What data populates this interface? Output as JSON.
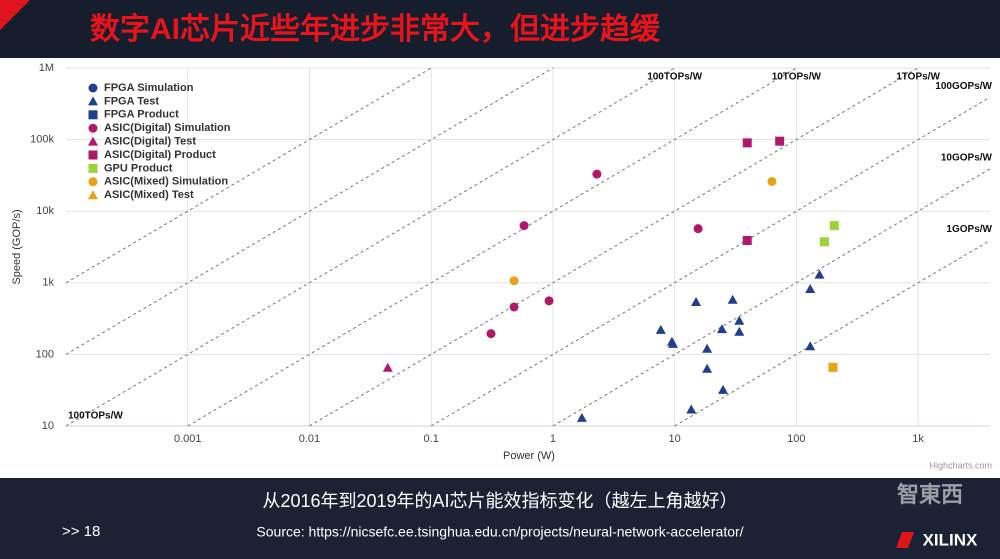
{
  "header": {
    "title": "数字AI芯片近些年进步非常大，但进步趋缓"
  },
  "chart_data": {
    "type": "scatter",
    "log_x": true,
    "log_y": true,
    "grid": true,
    "legend": "top-left",
    "xlabel": "Power (W)",
    "ylabel": "Speed (GOP/s)",
    "credits": "Highcharts.com",
    "xlim": [
      0.0001,
      3900
    ],
    "ylim": [
      10,
      1000000
    ],
    "xticks": [
      0.001,
      0.01,
      0.1,
      1,
      10,
      100,
      {
        "value": 1000,
        "label": "1k"
      }
    ],
    "yticks": [
      10,
      100,
      {
        "value": 1000,
        "label": "1k"
      },
      {
        "value": 10000,
        "label": "10k"
      },
      {
        "value": 100000,
        "label": "100k"
      },
      {
        "value": 1000000,
        "label": "1M"
      }
    ],
    "efficiency_lines": [
      {
        "value": 10000000,
        "label": null
      },
      {
        "value": 1000000,
        "label": null
      },
      {
        "value": 100000,
        "label": "100TOPs/W"
      },
      {
        "value": 10000,
        "label": "10TOPs/W"
      },
      {
        "value": 1000,
        "label": "1TOPs/W"
      },
      {
        "value": 100,
        "label": "100GOPs/W"
      },
      {
        "value": 10,
        "label": "10GOPs/W"
      },
      {
        "value": 1,
        "label": "1GOPs/W"
      }
    ],
    "annotations": [
      "100TOPs/W"
    ],
    "series": [
      {
        "name": "FPGA Simulation",
        "color": "#1f3f8f",
        "marker": "circle",
        "x": [],
        "values": []
      },
      {
        "name": "FPGA Test",
        "color": "#1f3f8f",
        "marker": "triangle",
        "x": [
          1.73,
          7.7,
          9.5,
          9.7,
          15,
          13.7,
          18.5,
          18.5,
          24.5,
          25,
          30,
          34,
          34,
          130,
          130,
          155
        ],
        "values": [
          13,
          220,
          150,
          140,
          540,
          17,
          120,
          63,
          225,
          32,
          580,
          295,
          207,
          820,
          130,
          1300
        ]
      },
      {
        "name": "FPGA Product",
        "color": "#1f3f8f",
        "marker": "square",
        "x": [],
        "values": []
      },
      {
        "name": "ASIC(Digital) Simulation",
        "color": "#b0186c",
        "marker": "circle",
        "x": [
          2.3,
          0.58,
          15.6,
          0.93,
          0.48,
          0.31
        ],
        "values": [
          33000,
          6300,
          5700,
          560,
          460,
          195
        ]
      },
      {
        "name": "ASIC(Digital) Test",
        "color": "#b0186c",
        "marker": "triangle",
        "x": [
          0.044
        ],
        "values": [
          65
        ]
      },
      {
        "name": "ASIC(Digital) Product",
        "color": "#b0186c",
        "marker": "square",
        "x": [
          39.5,
          73,
          39.5
        ],
        "values": [
          90000,
          95000,
          3900
        ]
      },
      {
        "name": "GPU Product",
        "color": "#9bd33a",
        "marker": "square",
        "x": [
          205,
          170
        ],
        "values": [
          6300,
          3750
        ]
      },
      {
        "name": "ASIC(Mixed) Simulation",
        "color": "#e8a217",
        "marker": "circle",
        "x": [
          0.48,
          63
        ],
        "values": [
          1070,
          26000
        ]
      },
      {
        "name": "ASIC(Mixed) Test",
        "color": "#e8a217",
        "marker": "triangle",
        "x": [],
        "values": []
      },
      {
        "name": null,
        "color": "#e8a217",
        "marker": "square",
        "x": [
          200
        ],
        "values": [
          66
        ]
      }
    ]
  },
  "footer": {
    "caption": "从2016年到2019年的AI芯片能效指标变化（越左上角越好）",
    "page": ">> 18",
    "source": "Source: https://nicsefc.ee.tsinghua.edu.cn/projects/neural-network-accelerator/",
    "logo_cn": "智東西",
    "logo_xilinx": "XILINX"
  }
}
